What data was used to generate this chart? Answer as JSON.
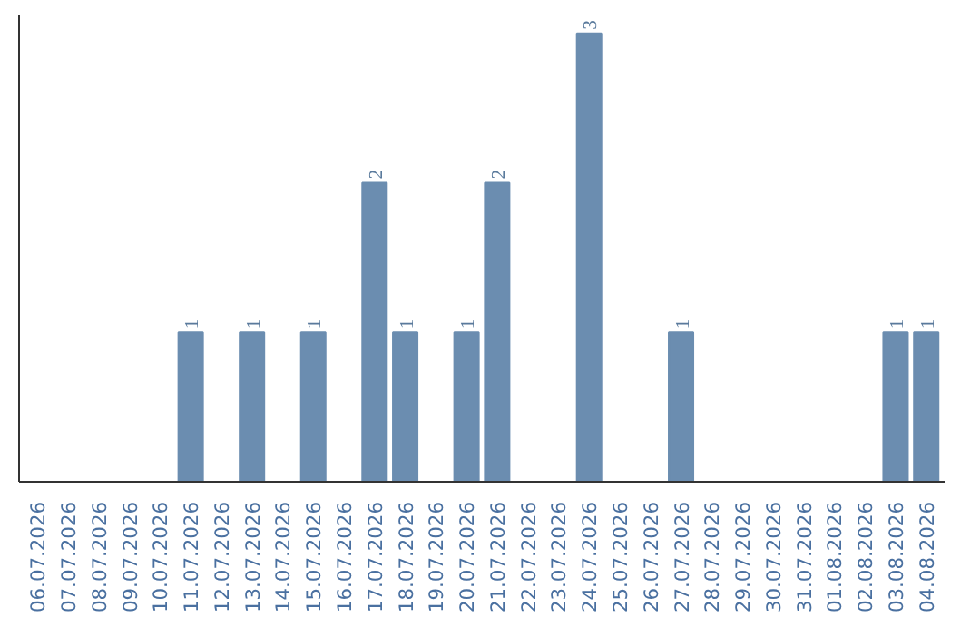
{
  "chart_data": {
    "type": "bar",
    "categories": [
      "06.07.2026",
      "07.07.2026",
      "08.07.2026",
      "09.07.2026",
      "10.07.2026",
      "11.07.2026",
      "12.07.2026",
      "13.07.2026",
      "14.07.2026",
      "15.07.2026",
      "16.07.2026",
      "17.07.2026",
      "18.07.2026",
      "19.07.2026",
      "20.07.2026",
      "21.07.2026",
      "22.07.2026",
      "23.07.2026",
      "24.07.2026",
      "25.07.2026",
      "26.07.2026",
      "27.07.2026",
      "28.07.2026",
      "29.07.2026",
      "30.07.2026",
      "31.07.2026",
      "01.08.2026",
      "02.08.2026",
      "03.08.2026",
      "04.08.2026"
    ],
    "values": [
      0,
      0,
      0,
      0,
      0,
      1,
      0,
      1,
      0,
      1,
      0,
      2,
      1,
      0,
      1,
      2,
      0,
      0,
      3,
      0,
      0,
      1,
      0,
      0,
      0,
      0,
      0,
      0,
      1,
      1
    ],
    "value_labels": [
      null,
      null,
      null,
      null,
      null,
      "1",
      null,
      "1",
      null,
      "1",
      null,
      "2",
      "1",
      null,
      "1",
      "2",
      null,
      null,
      "3",
      null,
      null,
      "1",
      null,
      null,
      null,
      null,
      null,
      null,
      "1",
      "1"
    ],
    "color": "#6b8db0",
    "tick_labels": "x",
    "grid": false
  }
}
